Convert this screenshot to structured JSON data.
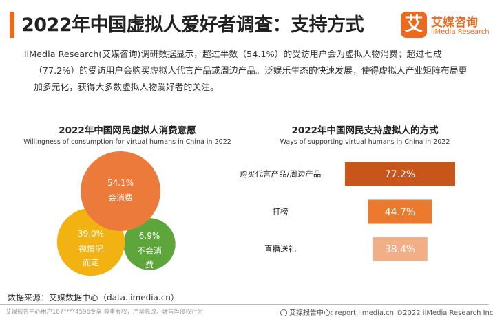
{
  "header": {
    "title": "2022年中国虚拟人爱好者调查：支持方式",
    "logo_badge": "艾",
    "logo_cn": "艾媒咨询",
    "logo_en": "iiMedia Research"
  },
  "intro": "iiMedia Research(艾媒咨询)调研数据显示，超过半数（54.1%）的受访用户会为虚拟人物消费；超过七成（77.2%）的受访用户会购买虚拟人代言产品或周边产品。泛娱乐生态的快速发展，使得虚拟人产业矩阵布局更加多元化，获得大多数虚拟人物爱好者的关注。",
  "colors": {
    "accent": "#ec6a1e",
    "circle_spend": "#ec7a3a",
    "circle_undecided": "#f2b312",
    "circle_no": "#5ea63b",
    "bar_1": "#c8561a",
    "bar_2": "#ec7a2e",
    "bar_3": "#f2ae86"
  },
  "chart_data": [
    {
      "type": "pie",
      "title": "2022年中国网民虚拟人消费意愿",
      "subtitle": "Willingness of consumption for virtual humans in China in 2022",
      "unit": "%",
      "slices": [
        {
          "label": "会消费",
          "value": 54.1,
          "value_label": "54.1%"
        },
        {
          "label": "视情况而定",
          "value": 39.0,
          "value_label": "39.0%"
        },
        {
          "label": "不会消费",
          "value": 6.9,
          "value_label": "6.9%"
        }
      ]
    },
    {
      "type": "bar",
      "orientation": "horizontal",
      "title": "2022年中国网民支持虚拟人的方式",
      "subtitle": "Ways of supporting virtual humans in China in 2022",
      "unit": "%",
      "categories": [
        "购买代言产品/周边产品",
        "打榜",
        "直播送礼"
      ],
      "values": [
        77.2,
        44.7,
        38.4
      ],
      "value_labels": [
        "77.2%",
        "44.7%",
        "38.4%"
      ]
    }
  ],
  "footer": {
    "source": "数据来源：艾媒数据中心（data.iimedia.cn）",
    "left_note": "艾媒报告中心用户187****4596专享 尊重版权，严禁篡改、转售等侵权行为",
    "right_note": "艾媒报告中心: report.iimedia.cn ©2022 iiMedia Research Inc"
  }
}
